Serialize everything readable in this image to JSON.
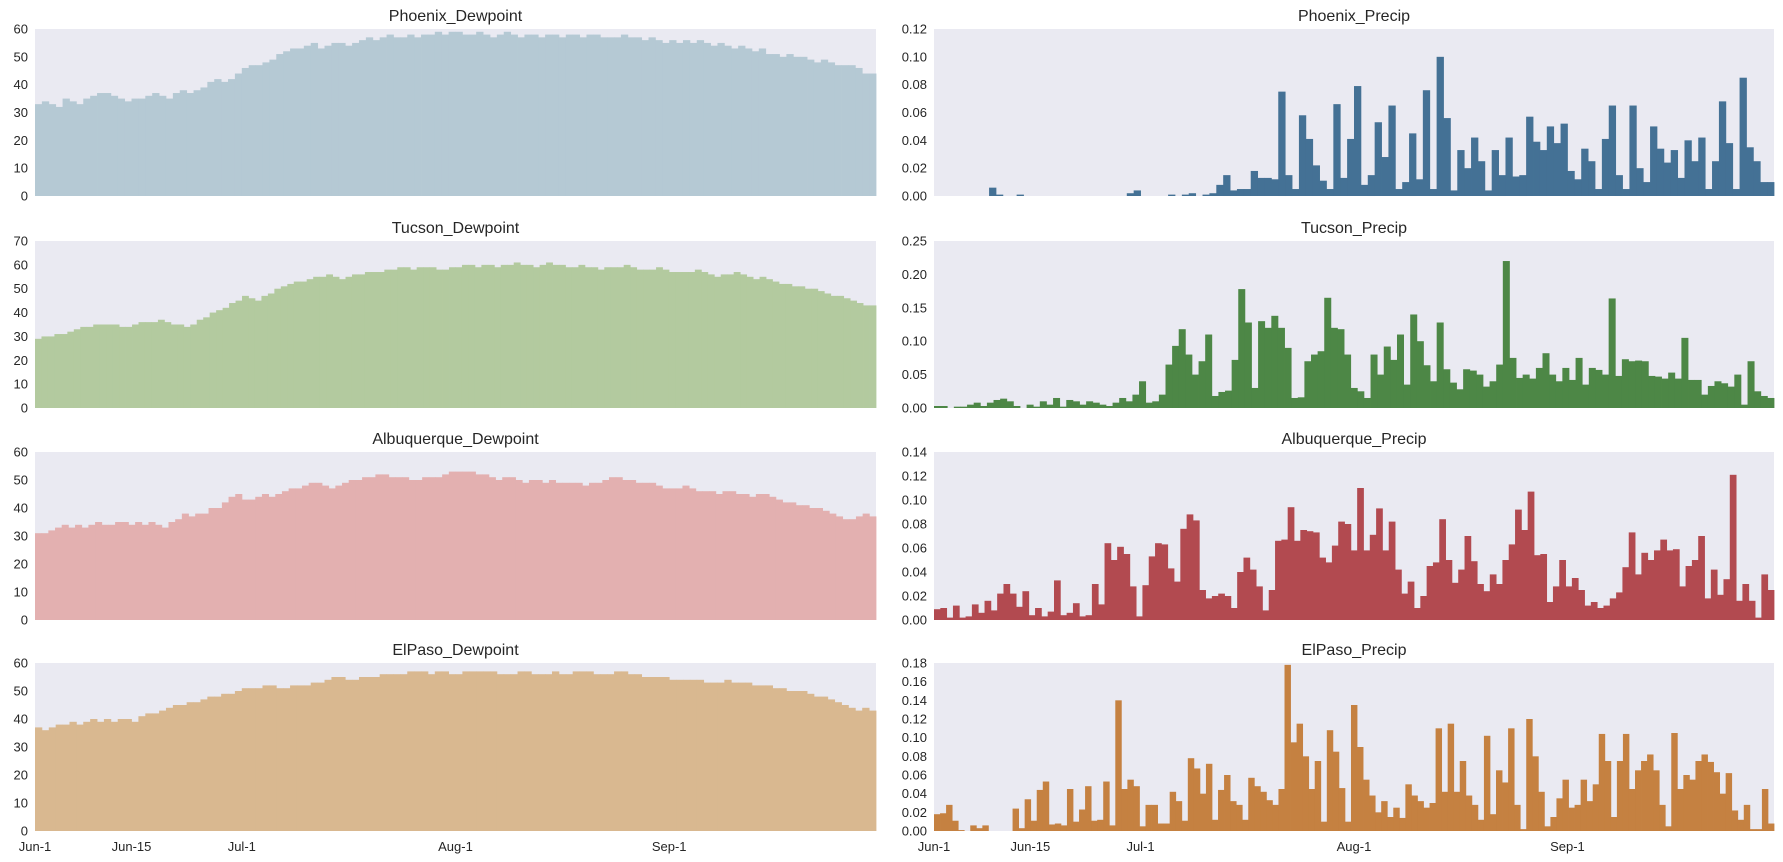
{
  "figure": {
    "xtick_labels": [
      "Jun-1",
      "Jun-15",
      "Jul-1",
      "Aug-1",
      "Sep-1"
    ],
    "xtick_days": [
      0,
      14,
      30,
      61,
      92
    ],
    "n_days": 122,
    "background": "#eaeaf2"
  },
  "chart_data": [
    {
      "type": "bar",
      "title": "Phoenix_Dewpoint",
      "color": "#b5c9d4",
      "ylim": [
        0,
        60
      ],
      "yticks": [
        "0",
        "10",
        "20",
        "30",
        "40",
        "50",
        "60"
      ],
      "values": [
        33,
        34,
        33,
        32,
        35,
        34,
        33,
        35,
        36,
        37,
        37,
        36,
        35,
        34,
        35,
        35,
        36,
        37,
        36,
        35,
        37,
        38,
        37,
        38,
        39,
        41,
        42,
        41,
        42,
        44,
        46,
        47,
        47,
        48,
        49,
        51,
        52,
        53,
        53,
        54,
        55,
        53,
        54,
        55,
        55,
        54,
        55,
        56,
        57,
        56,
        57,
        58,
        57,
        57,
        58,
        57,
        58,
        58,
        59,
        58,
        59,
        59,
        58,
        58,
        59,
        58,
        57,
        58,
        59,
        58,
        57,
        58,
        58,
        57,
        58,
        58,
        57,
        58,
        58,
        57,
        58,
        58,
        57,
        57,
        57,
        58,
        57,
        57,
        56,
        57,
        56,
        55,
        56,
        55,
        56,
        55,
        56,
        55,
        54,
        55,
        54,
        53,
        54,
        53,
        52,
        53,
        51,
        51,
        50,
        51,
        50,
        50,
        49,
        48,
        49,
        48,
        47,
        47,
        47,
        46,
        44,
        44
      ]
    },
    {
      "type": "bar",
      "title": "Phoenix_Precip",
      "color": "#447195",
      "ylim": [
        0,
        0.12
      ],
      "yticks": [
        "0.00",
        "0.02",
        "0.04",
        "0.06",
        "0.08",
        "0.10",
        "0.12"
      ],
      "values": [
        0,
        0,
        0,
        0,
        0,
        0,
        0,
        0,
        0.006,
        0.001,
        0,
        0,
        0.001,
        0,
        0,
        0,
        0,
        0,
        0,
        0,
        0,
        0,
        0,
        0,
        0,
        0,
        0,
        0,
        0.002,
        0.004,
        0,
        0,
        0,
        0,
        0.001,
        0,
        0.001,
        0.002,
        0,
        0.001,
        0.002,
        0.008,
        0.015,
        0.004,
        0.005,
        0.005,
        0.018,
        0.013,
        0.013,
        0.012,
        0.075,
        0.015,
        0.005,
        0.058,
        0.041,
        0.022,
        0.011,
        0.005,
        0.066,
        0.013,
        0.041,
        0.079,
        0.008,
        0.015,
        0.053,
        0.028,
        0.065,
        0.005,
        0.01,
        0.045,
        0.012,
        0.076,
        0.005,
        0.1,
        0.056,
        0.004,
        0.033,
        0.02,
        0.042,
        0.025,
        0.004,
        0.033,
        0.015,
        0.042,
        0.014,
        0.015,
        0.057,
        0.039,
        0.033,
        0.05,
        0.038,
        0.052,
        0.018,
        0.012,
        0.034,
        0.025,
        0.005,
        0.041,
        0.065,
        0.015,
        0.005,
        0.065,
        0.02,
        0.01,
        0.05,
        0.034,
        0.024,
        0.033,
        0.013,
        0.04,
        0.025,
        0.042,
        0.005,
        0.025,
        0.068,
        0.038,
        0.005,
        0.085,
        0.035,
        0.025,
        0.01,
        0.01
      ]
    },
    {
      "type": "bar",
      "title": "Tucson_Dewpoint",
      "color": "#b3ca9f",
      "ylim": [
        0,
        70
      ],
      "yticks": [
        "0",
        "10",
        "20",
        "30",
        "40",
        "50",
        "60",
        "70"
      ],
      "values": [
        29,
        30,
        30,
        31,
        31,
        32,
        33,
        34,
        34,
        35,
        35,
        35,
        35,
        34,
        34,
        35,
        36,
        36,
        36,
        37,
        36,
        35,
        35,
        34,
        35,
        37,
        38,
        40,
        41,
        42,
        44,
        45,
        47,
        46,
        45,
        47,
        48,
        50,
        51,
        52,
        53,
        53,
        54,
        55,
        55,
        56,
        55,
        54,
        55,
        56,
        56,
        57,
        57,
        57,
        58,
        58,
        59,
        59,
        58,
        59,
        59,
        59,
        58,
        58,
        59,
        59,
        60,
        60,
        59,
        60,
        60,
        59,
        60,
        60,
        61,
        60,
        60,
        59,
        60,
        61,
        60,
        60,
        59,
        59,
        60,
        59,
        59,
        58,
        59,
        59,
        59,
        60,
        59,
        58,
        58,
        58,
        59,
        58,
        57,
        57,
        57,
        57,
        58,
        57,
        56,
        55,
        56,
        56,
        57,
        56,
        55,
        54,
        55,
        54,
        53,
        52,
        52,
        51,
        51,
        50,
        50,
        49,
        48,
        47,
        47,
        46,
        45,
        44,
        43,
        43
      ]
    },
    {
      "type": "bar",
      "title": "Tucson_Precip",
      "color": "#4d8746",
      "ylim": [
        0,
        0.25
      ],
      "yticks": [
        "0.00",
        "0.05",
        "0.10",
        "0.15",
        "0.20",
        "0.25"
      ],
      "values": [
        0.003,
        0.003,
        0,
        0.002,
        0.002,
        0.005,
        0.008,
        0.003,
        0.008,
        0.012,
        0.014,
        0.01,
        0.003,
        0,
        0.005,
        0.002,
        0.01,
        0.005,
        0.015,
        0.002,
        0.012,
        0.01,
        0.005,
        0.01,
        0.008,
        0.005,
        0.003,
        0.008,
        0.015,
        0.01,
        0.02,
        0.04,
        0.008,
        0.01,
        0.02,
        0.065,
        0.093,
        0.118,
        0.08,
        0.05,
        0.07,
        0.11,
        0.018,
        0.024,
        0.026,
        0.072,
        0.178,
        0.128,
        0.03,
        0.13,
        0.12,
        0.138,
        0.12,
        0.09,
        0.015,
        0.016,
        0.07,
        0.08,
        0.085,
        0.165,
        0.12,
        0.118,
        0.08,
        0.03,
        0.025,
        0.015,
        0.08,
        0.05,
        0.092,
        0.072,
        0.11,
        0.035,
        0.14,
        0.1,
        0.064,
        0.04,
        0.128,
        0.058,
        0.038,
        0.028,
        0.058,
        0.056,
        0.05,
        0.032,
        0.04,
        0.065,
        0.22,
        0.075,
        0.045,
        0.05,
        0.044,
        0.06,
        0.082,
        0.05,
        0.04,
        0.06,
        0.042,
        0.075,
        0.035,
        0.06,
        0.057,
        0.05,
        0.164,
        0.048,
        0.073,
        0.07,
        0.071,
        0.07,
        0.048,
        0.047,
        0.044,
        0.053,
        0.044,
        0.105,
        0.042,
        0.042,
        0.02,
        0.033,
        0.04,
        0.037,
        0.032,
        0.05,
        0.005,
        0.07,
        0.025,
        0.018,
        0.015
      ]
    },
    {
      "type": "bar",
      "title": "Albuquerque_Dewpoint",
      "color": "#e3b0b0",
      "ylim": [
        0,
        60
      ],
      "yticks": [
        "0",
        "10",
        "20",
        "30",
        "40",
        "50",
        "60"
      ],
      "values": [
        31,
        31,
        32,
        33,
        34,
        33,
        34,
        33,
        34,
        35,
        34,
        34,
        35,
        35,
        34,
        35,
        34,
        35,
        34,
        33,
        35,
        36,
        38,
        37,
        38,
        38,
        40,
        40,
        42,
        44,
        45,
        43,
        43,
        44,
        45,
        44,
        45,
        46,
        47,
        47,
        48,
        49,
        49,
        48,
        47,
        48,
        49,
        50,
        50,
        51,
        51,
        52,
        52,
        51,
        51,
        51,
        50,
        50,
        51,
        51,
        51,
        52,
        53,
        53,
        53,
        53,
        52,
        52,
        51,
        50,
        51,
        51,
        50,
        49,
        50,
        50,
        49,
        50,
        49,
        49,
        49,
        49,
        48,
        49,
        49,
        50,
        51,
        51,
        50,
        50,
        49,
        49,
        49,
        48,
        47,
        47,
        47,
        48,
        47,
        46,
        46,
        46,
        45,
        46,
        46,
        45,
        45,
        44,
        45,
        45,
        44,
        43,
        42,
        42,
        41,
        41,
        40,
        40,
        39,
        38,
        37,
        36,
        36,
        37,
        38,
        37
      ]
    },
    {
      "type": "bar",
      "title": "Albuquerque_Precip",
      "color": "#b24a50",
      "ylim": [
        0,
        0.14
      ],
      "yticks": [
        "0.00",
        "0.02",
        "0.04",
        "0.06",
        "0.08",
        "0.10",
        "0.12",
        "0.14"
      ],
      "values": [
        0.009,
        0.01,
        0.002,
        0.012,
        0.002,
        0.003,
        0.013,
        0.006,
        0.016,
        0.008,
        0.022,
        0.03,
        0.022,
        0.011,
        0.024,
        0.004,
        0.01,
        0.003,
        0.007,
        0.033,
        0.004,
        0.006,
        0.014,
        0.003,
        0.004,
        0.03,
        0.013,
        0.064,
        0.05,
        0.061,
        0.055,
        0.028,
        0.003,
        0.029,
        0.053,
        0.064,
        0.063,
        0.043,
        0.032,
        0.076,
        0.088,
        0.083,
        0.025,
        0.018,
        0.02,
        0.022,
        0.02,
        0.01,
        0.04,
        0.052,
        0.042,
        0.028,
        0.008,
        0.025,
        0.066,
        0.067,
        0.094,
        0.066,
        0.075,
        0.074,
        0.073,
        0.052,
        0.048,
        0.062,
        0.082,
        0.08,
        0.058,
        0.11,
        0.058,
        0.071,
        0.093,
        0.058,
        0.082,
        0.042,
        0.022,
        0.032,
        0.01,
        0.02,
        0.045,
        0.048,
        0.084,
        0.05,
        0.031,
        0.042,
        0.07,
        0.049,
        0.03,
        0.024,
        0.038,
        0.03,
        0.05,
        0.063,
        0.092,
        0.075,
        0.107,
        0.054,
        0.055,
        0.015,
        0.028,
        0.05,
        0.028,
        0.035,
        0.025,
        0.012,
        0.015,
        0.01,
        0.012,
        0.018,
        0.023,
        0.044,
        0.073,
        0.038,
        0.056,
        0.05,
        0.058,
        0.067,
        0.058,
        0.059,
        0.028,
        0.045,
        0.05,
        0.07,
        0.018,
        0.042,
        0.021,
        0.034,
        0.121,
        0.016,
        0.03,
        0.016,
        0.002,
        0.038,
        0.025
      ]
    },
    {
      "type": "bar",
      "title": "ElPaso_Dewpoint",
      "color": "#d9b890",
      "ylim": [
        0,
        60
      ],
      "yticks": [
        "0",
        "10",
        "20",
        "30",
        "40",
        "50",
        "60"
      ],
      "values": [
        37,
        36,
        37,
        38,
        38,
        39,
        38,
        39,
        40,
        39,
        40,
        39,
        40,
        40,
        39,
        41,
        42,
        42,
        43,
        44,
        45,
        45,
        46,
        46,
        47,
        48,
        48,
        49,
        49,
        50,
        51,
        51,
        51,
        52,
        52,
        51,
        51,
        52,
        52,
        52,
        53,
        53,
        54,
        55,
        55,
        54,
        54,
        55,
        55,
        55,
        56,
        56,
        56,
        56,
        57,
        57,
        57,
        56,
        57,
        57,
        56,
        56,
        57,
        57,
        57,
        57,
        57,
        56,
        56,
        56,
        57,
        57,
        56,
        56,
        56,
        57,
        56,
        56,
        57,
        57,
        57,
        56,
        56,
        56,
        57,
        57,
        56,
        56,
        55,
        55,
        55,
        55,
        54,
        54,
        54,
        54,
        54,
        53,
        53,
        53,
        54,
        53,
        53,
        53,
        52,
        52,
        52,
        51,
        51,
        50,
        50,
        50,
        49,
        48,
        48,
        47,
        46,
        45,
        44,
        43,
        44,
        43
      ]
    },
    {
      "type": "bar",
      "title": "ElPaso_Precip",
      "color": "#c58141",
      "ylim": [
        0,
        0.18
      ],
      "yticks": [
        "0.00",
        "0.02",
        "0.04",
        "0.06",
        "0.08",
        "0.10",
        "0.12",
        "0.14",
        "0.16",
        "0.18"
      ],
      "values": [
        0.018,
        0.019,
        0.028,
        0.011,
        0.001,
        0,
        0.006,
        0.003,
        0.006,
        0,
        0,
        0,
        0,
        0.024,
        0.003,
        0.034,
        0.011,
        0.044,
        0.053,
        0.007,
        0.008,
        0.006,
        0.045,
        0.01,
        0.023,
        0.048,
        0.011,
        0.012,
        0.053,
        0.006,
        0.14,
        0.045,
        0.055,
        0.048,
        0.005,
        0.028,
        0.028,
        0.008,
        0.008,
        0.042,
        0.032,
        0.011,
        0.078,
        0.067,
        0.04,
        0.072,
        0.012,
        0.044,
        0.06,
        0.032,
        0.028,
        0.012,
        0.057,
        0.048,
        0.042,
        0.033,
        0.028,
        0.045,
        0.178,
        0.095,
        0.115,
        0.08,
        0.045,
        0.075,
        0.01,
        0.108,
        0.085,
        0.046,
        0.01,
        0.135,
        0.09,
        0.055,
        0.038,
        0.02,
        0.032,
        0.015,
        0.025,
        0.014,
        0.05,
        0.038,
        0.032,
        0.025,
        0.03,
        0.11,
        0.042,
        0.115,
        0.042,
        0.075,
        0.038,
        0.028,
        0.012,
        0.102,
        0.018,
        0.065,
        0.052,
        0.11,
        0.028,
        0.002,
        0.12,
        0.08,
        0.042,
        0.005,
        0.015,
        0.035,
        0.055,
        0.025,
        0.028,
        0.055,
        0.032,
        0.05,
        0.104,
        0.075,
        0.015,
        0.075,
        0.104,
        0.045,
        0.065,
        0.075,
        0.082,
        0.065,
        0.028,
        0.005,
        0.105,
        0.045,
        0.06,
        0.055,
        0.075,
        0.082,
        0.074,
        0.063,
        0.04,
        0.062,
        0.022,
        0.012,
        0.028,
        0.002,
        0.002,
        0.045,
        0.008
      ]
    }
  ]
}
